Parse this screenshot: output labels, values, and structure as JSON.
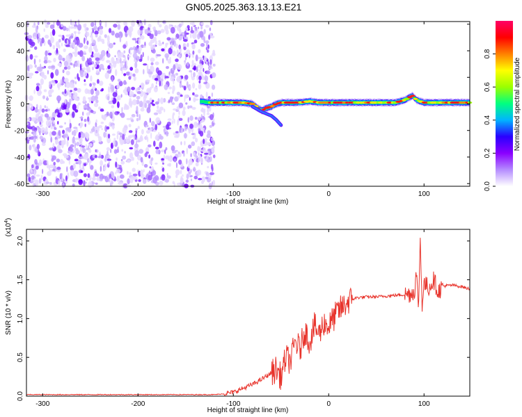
{
  "title": "GN05.2025.363.13.13.E21",
  "chart_data": [
    {
      "type": "heatmap",
      "xlabel": "Height of straight line (km)",
      "ylabel": "Frequency (Hz)",
      "xlim": [
        -317,
        148
      ],
      "ylim": [
        -62,
        62
      ],
      "xticks": [
        -300,
        -200,
        -100,
        0,
        100
      ],
      "yticks": [
        -60,
        -40,
        -20,
        0,
        20,
        40,
        60
      ],
      "noise_region_x": [
        -317,
        -120
      ],
      "signal_track": {
        "x": [
          -135,
          -125,
          -110,
          -100,
          -90,
          -80,
          -75,
          -70,
          -65,
          -60,
          -55,
          -50,
          -45,
          -40,
          -30,
          -20,
          -10,
          0,
          10,
          20,
          30,
          40,
          50,
          60,
          70,
          80,
          85,
          88,
          92,
          100,
          110,
          120,
          130,
          140,
          148
        ],
        "frequency": [
          2,
          1,
          1,
          1,
          1,
          0,
          -3,
          -5,
          -3,
          -2,
          0,
          1,
          1,
          1,
          1,
          2,
          1,
          1,
          1,
          1,
          1,
          1,
          1,
          1,
          1,
          3,
          5,
          6,
          3,
          1,
          1,
          1,
          1,
          1,
          1
        ]
      },
      "drift_feature": {
        "x": [
          -80,
          -70,
          -60,
          -55,
          -50
        ],
        "frequency": [
          -2,
          -6,
          -9,
          -12,
          -16
        ]
      },
      "colorbar": {
        "label": "Normalized spectral amplitude",
        "range": [
          0.0,
          1.0
        ],
        "ticks": [
          0.0,
          0.2,
          0.4,
          0.6,
          0.8
        ],
        "tick_labels": [
          "0.0",
          "0.2",
          "0.4",
          "0.6",
          "0.8"
        ],
        "colormap": [
          "#ffffff",
          "#b58cff",
          "#8a00ff",
          "#2a00ff",
          "#00b4ff",
          "#00ff80",
          "#9aff00",
          "#ffff00",
          "#ff8000",
          "#ff0000",
          "#ff0066"
        ]
      }
    },
    {
      "type": "line",
      "xlabel": "Height of straight line (km)",
      "ylabel": "SNR (10 * v/v)",
      "multiplier_label": "(x10",
      "multiplier_exp": "4",
      "xlim": [
        -317,
        148
      ],
      "ylim": [
        0,
        2.15
      ],
      "xticks": [
        -300,
        -200,
        -100,
        0,
        100
      ],
      "yticks": [
        0.0,
        0.5,
        1.0,
        1.5,
        2.0
      ],
      "ytick_labels": [
        "0.0",
        "0.5",
        "1.0",
        "1.5",
        "2.0"
      ],
      "color": "#e8342c",
      "series": [
        {
          "x": [
            -317,
            -300,
            -250,
            -200,
            -150,
            -120,
            -110,
            -100,
            -90,
            -80,
            -70,
            -60,
            -55,
            -50,
            -45,
            -40,
            -35,
            -30,
            -25,
            -20,
            -15,
            -10,
            -5,
            0,
            5,
            10,
            15,
            20,
            25,
            30,
            40,
            50,
            60,
            70,
            80,
            85,
            90,
            92,
            94,
            96,
            98,
            100,
            105,
            110,
            115,
            120,
            130,
            140,
            148
          ],
          "values": [
            0.02,
            0.02,
            0.02,
            0.02,
            0.02,
            0.02,
            0.03,
            0.05,
            0.1,
            0.15,
            0.22,
            0.3,
            0.35,
            0.25,
            0.5,
            0.45,
            0.7,
            0.6,
            0.85,
            0.7,
            0.9,
            0.8,
            0.95,
            0.9,
            1.0,
            1.1,
            1.15,
            1.22,
            1.25,
            1.27,
            1.28,
            1.28,
            1.29,
            1.3,
            1.31,
            1.32,
            1.35,
            1.6,
            1.1,
            2.0,
            1.2,
            1.45,
            1.4,
            1.5,
            1.35,
            1.42,
            1.43,
            1.41,
            1.38
          ]
        }
      ]
    }
  ]
}
